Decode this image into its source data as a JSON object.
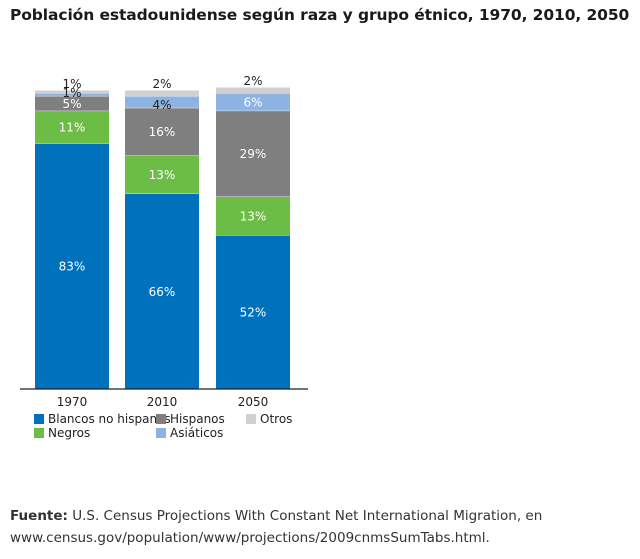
{
  "title": "Población estadounidense según raza y grupo étnico, 1970, 2010, 2050",
  "chart_data": {
    "type": "bar",
    "stacked": true,
    "title": "Población estadounidense según raza y grupo étnico, 1970, 2010, 2050",
    "xlabel": "",
    "ylabel": "",
    "ylim": [
      0,
      100
    ],
    "categories": [
      "1970",
      "2010",
      "2050"
    ],
    "series": [
      {
        "name": "Blancos no hispanos",
        "color": "#0071bc",
        "values": [
          83,
          66,
          52
        ],
        "labels": [
          "83%",
          "66%",
          "52%"
        ]
      },
      {
        "name": "Negros",
        "color": "#6cbd45",
        "values": [
          11,
          13,
          13
        ],
        "labels": [
          "11%",
          "13%",
          "13%"
        ]
      },
      {
        "name": "Hispanos",
        "color": "#7f7f7f",
        "values": [
          5,
          16,
          29
        ],
        "labels": [
          "5%",
          "16%",
          "29%"
        ]
      },
      {
        "name": "Asiáticos",
        "color": "#8db3e2",
        "values": [
          1,
          4,
          6
        ],
        "labels": [
          "1%",
          "4%",
          "6%"
        ]
      },
      {
        "name": "Otros",
        "color": "#d0d0d0",
        "values": [
          1,
          2,
          2
        ],
        "labels": [
          "1%",
          "2%",
          "2%"
        ]
      }
    ],
    "legend_order": [
      "Blancos no hispanos",
      "Hispanos",
      "Otros",
      "Negros",
      "Asiáticos"
    ],
    "legend_position": "bottom",
    "grid": false
  },
  "source": {
    "label": "Fuente:",
    "text": " U.S. Census Projections With Constant Net International Migration, en www.census.gov/population/www/projections/2009cnmsSumTabs.html."
  }
}
